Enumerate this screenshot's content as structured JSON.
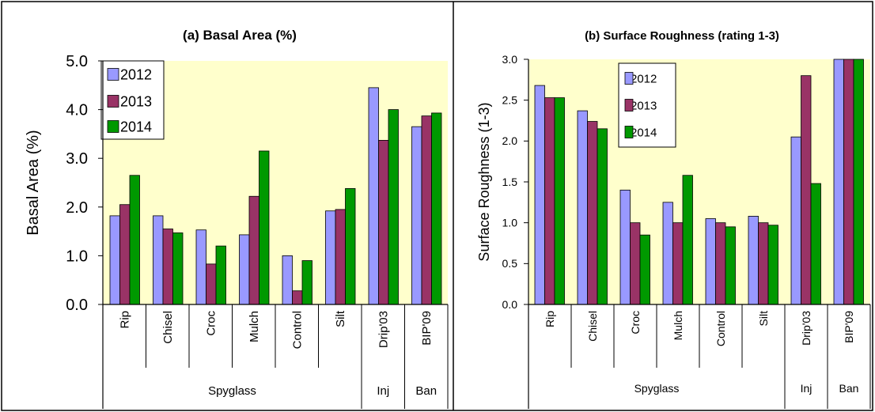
{
  "colors": {
    "2012": "#9999ff",
    "2013": "#993366",
    "2014": "#009900",
    "plot_bg": "#ffffcc"
  },
  "chart_data": [
    {
      "type": "bar",
      "title": "(a)  Basal Area (%)",
      "ylabel": "Basal Area (%)",
      "xlabel": "",
      "ylim": [
        0,
        5
      ],
      "yticks": [
        "0.0",
        "1.0",
        "2.0",
        "3.0",
        "4.0",
        "5.0"
      ],
      "categories": [
        "Rip",
        "Chisel",
        "Croc",
        "Mulch",
        "Control",
        "Silt",
        "Drip'03",
        "BIP'09"
      ],
      "groups": [
        {
          "label": "Spyglass",
          "count": 6
        },
        {
          "label": "Inj",
          "count": 1
        },
        {
          "label": "Ban",
          "count": 1
        }
      ],
      "series": [
        {
          "name": "2012",
          "values": [
            1.82,
            1.82,
            1.53,
            1.43,
            1.0,
            1.92,
            4.45,
            3.65
          ]
        },
        {
          "name": "2013",
          "values": [
            2.05,
            1.55,
            0.83,
            2.22,
            0.28,
            1.95,
            3.37,
            3.87
          ]
        },
        {
          "name": "2014",
          "values": [
            2.65,
            1.47,
            1.2,
            3.15,
            0.9,
            2.38,
            4.0,
            3.93
          ]
        }
      ],
      "legend": "top-left",
      "grid": false
    },
    {
      "type": "bar",
      "title": "(b) Surface Roughness (rating 1-3)",
      "ylabel": "Surface Roughness (1-3)",
      "xlabel": "",
      "ylim": [
        0,
        3
      ],
      "yticks": [
        "0.0",
        "0.5",
        "1.0",
        "1.5",
        "2.0",
        "2.5",
        "3.0"
      ],
      "categories": [
        "Rip",
        "Chisel",
        "Croc",
        "Mulch",
        "Control",
        "Silt",
        "Drip'03",
        "BIP'09"
      ],
      "groups": [
        {
          "label": "Spyglass",
          "count": 6
        },
        {
          "label": "Inj",
          "count": 1
        },
        {
          "label": "Ban",
          "count": 1
        }
      ],
      "series": [
        {
          "name": "2012",
          "values": [
            2.68,
            2.37,
            1.4,
            1.25,
            1.05,
            1.08,
            2.05,
            3.0
          ]
        },
        {
          "name": "2013",
          "values": [
            2.53,
            2.24,
            1.0,
            1.0,
            1.0,
            1.0,
            2.8,
            3.0
          ]
        },
        {
          "name": "2014",
          "values": [
            2.53,
            2.15,
            0.85,
            1.58,
            0.95,
            0.97,
            1.48,
            3.0
          ]
        }
      ],
      "legend": "top-center",
      "grid": false
    }
  ]
}
